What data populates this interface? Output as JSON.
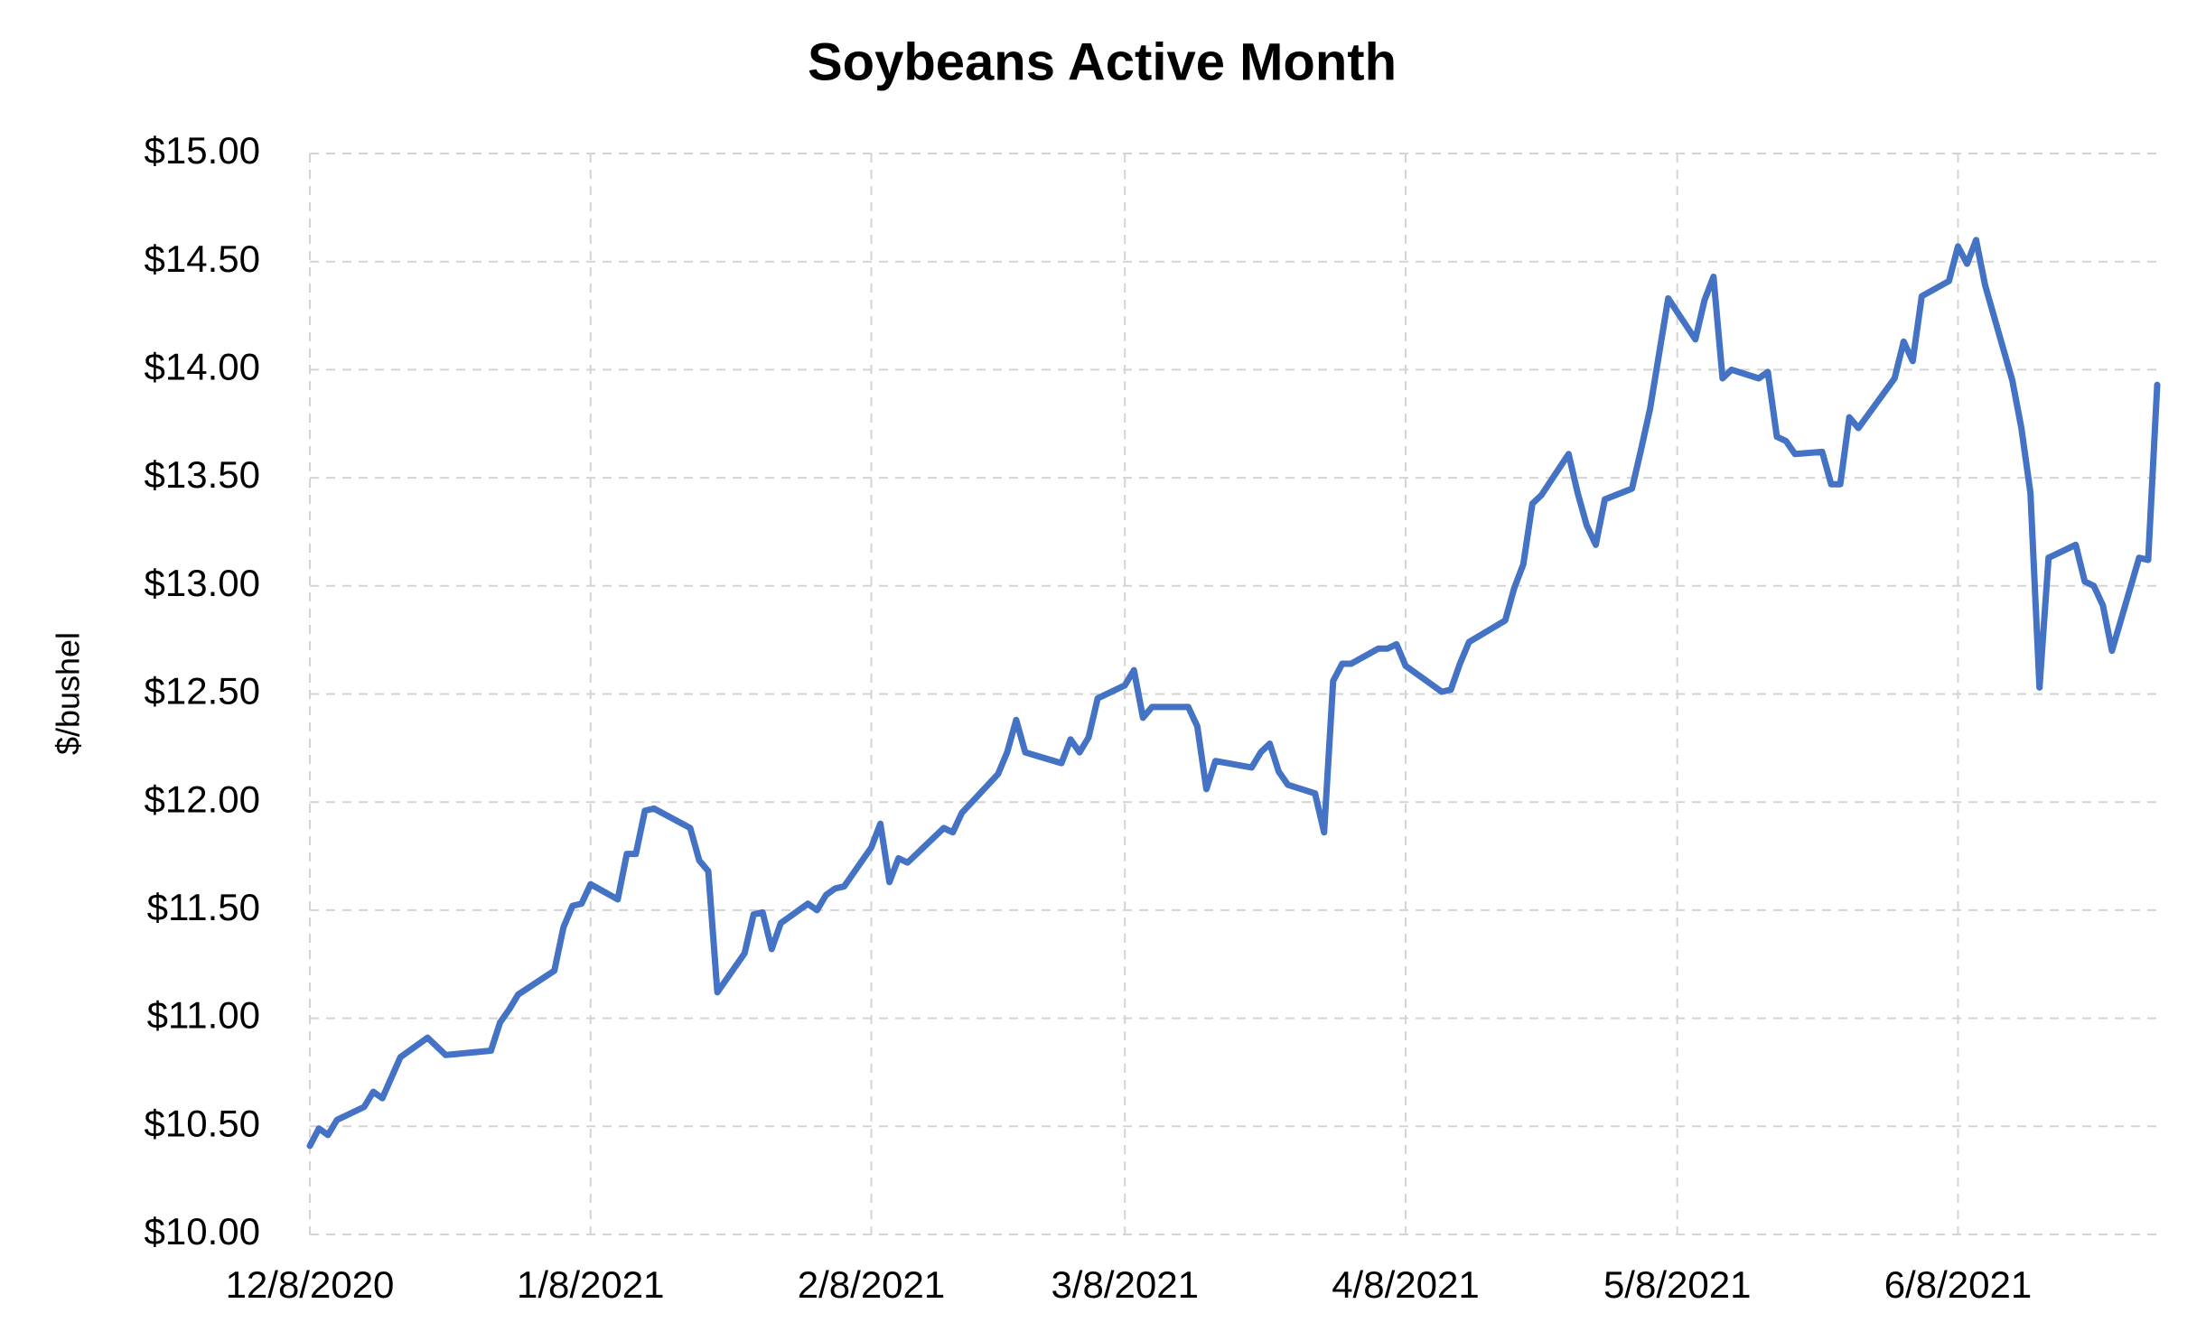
{
  "chart_data": {
    "type": "line",
    "title": "Soybeans Active Month",
    "ylabel": "$/bushel",
    "x": [
      "12/8/2020",
      "12/9/2020",
      "12/10/2020",
      "12/11/2020",
      "12/14/2020",
      "12/15/2020",
      "12/16/2020",
      "12/18/2020",
      "12/21/2020",
      "12/23/2020",
      "12/28/2020",
      "12/29/2020",
      "12/30/2020",
      "12/31/2020",
      "1/4/2021",
      "1/5/2021",
      "1/6/2021",
      "1/7/2021",
      "1/8/2021",
      "1/11/2021",
      "1/12/2021",
      "1/13/2021",
      "1/14/2021",
      "1/15/2021",
      "1/19/2021",
      "1/20/2021",
      "1/21/2021",
      "1/22/2021",
      "1/25/2021",
      "1/26/2021",
      "1/27/2021",
      "1/28/2021",
      "1/29/2021",
      "2/1/2021",
      "2/2/2021",
      "2/3/2021",
      "2/4/2021",
      "2/5/2021",
      "2/8/2021",
      "2/9/2021",
      "2/10/2021",
      "2/11/2021",
      "2/12/2021",
      "2/16/2021",
      "2/17/2021",
      "2/18/2021",
      "2/22/2021",
      "2/23/2021",
      "2/24/2021",
      "2/25/2021",
      "3/1/2021",
      "3/2/2021",
      "3/3/2021",
      "3/4/2021",
      "3/5/2021",
      "3/8/2021",
      "3/9/2021",
      "3/10/2021",
      "3/11/2021",
      "3/15/2021",
      "3/16/2021",
      "3/17/2021",
      "3/18/2021",
      "3/22/2021",
      "3/23/2021",
      "3/24/2021",
      "3/25/2021",
      "3/26/2021",
      "3/29/2021",
      "3/30/2021",
      "3/31/2021",
      "4/1/2021",
      "4/2/2021",
      "4/5/2021",
      "4/6/2021",
      "4/7/2021",
      "4/8/2021",
      "4/12/2021",
      "4/13/2021",
      "4/14/2021",
      "4/15/2021",
      "4/19/2021",
      "4/20/2021",
      "4/21/2021",
      "4/22/2021",
      "4/23/2021",
      "4/26/2021",
      "4/27/2021",
      "4/28/2021",
      "4/29/2021",
      "4/30/2021",
      "5/3/2021",
      "5/4/2021",
      "5/5/2021",
      "5/7/2021",
      "5/10/2021",
      "5/11/2021",
      "5/12/2021",
      "5/13/2021",
      "5/14/2021",
      "5/17/2021",
      "5/18/2021",
      "5/19/2021",
      "5/20/2021",
      "5/21/2021",
      "5/24/2021",
      "5/25/2021",
      "5/26/2021",
      "5/27/2021",
      "5/28/2021",
      "6/1/2021",
      "6/2/2021",
      "6/3/2021",
      "6/4/2021",
      "6/7/2021",
      "6/8/2021",
      "6/9/2021",
      "6/10/2021",
      "6/11/2021",
      "6/14/2021",
      "6/15/2021",
      "6/16/2021",
      "6/17/2021",
      "6/18/2021",
      "6/21/2021",
      "6/22/2021",
      "6/23/2021",
      "6/24/2021",
      "6/25/2021",
      "6/28/2021",
      "6/29/2021",
      "6/30/2021"
    ],
    "series": [
      {
        "name": "Soybeans Active Month",
        "color": "#4472c4",
        "values": [
          10.41,
          10.49,
          10.46,
          10.53,
          10.59,
          10.66,
          10.63,
          10.82,
          10.91,
          10.83,
          10.85,
          10.98,
          11.04,
          11.11,
          11.22,
          11.42,
          11.52,
          11.53,
          11.62,
          11.55,
          11.76,
          11.76,
          11.96,
          11.97,
          11.88,
          11.73,
          11.68,
          11.12,
          11.3,
          11.48,
          11.49,
          11.32,
          11.44,
          11.53,
          11.5,
          11.57,
          11.6,
          11.61,
          11.79,
          11.9,
          11.63,
          11.74,
          11.72,
          11.88,
          11.86,
          11.95,
          12.13,
          12.23,
          12.38,
          12.23,
          12.18,
          12.29,
          12.23,
          12.3,
          12.48,
          12.54,
          12.61,
          12.39,
          12.44,
          12.44,
          12.35,
          12.06,
          12.19,
          12.16,
          12.23,
          12.27,
          12.14,
          12.08,
          12.04,
          11.86,
          12.56,
          12.64,
          12.64,
          12.71,
          12.71,
          12.73,
          12.63,
          12.51,
          12.52,
          12.64,
          12.74,
          12.84,
          12.99,
          13.1,
          13.38,
          13.42,
          13.61,
          13.43,
          13.28,
          13.19,
          13.4,
          13.45,
          13.63,
          13.82,
          14.33,
          14.14,
          14.32,
          14.43,
          13.96,
          14.0,
          13.96,
          13.99,
          13.69,
          13.67,
          13.61,
          13.62,
          13.47,
          13.47,
          13.78,
          13.73,
          13.96,
          14.13,
          14.04,
          14.34,
          14.41,
          14.57,
          14.49,
          14.6,
          14.39,
          13.95,
          13.73,
          13.43,
          12.53,
          13.13,
          13.19,
          13.02,
          13.0,
          12.91,
          12.7,
          13.13,
          13.12,
          13.93
        ]
      }
    ],
    "xlim": [
      "12/8/2020",
      "6/30/2021"
    ],
    "xticks": [
      "12/8/2020",
      "1/8/2021",
      "2/8/2021",
      "3/8/2021",
      "4/8/2021",
      "5/8/2021",
      "6/8/2021"
    ],
    "ylim": [
      10,
      15
    ],
    "yticks": [
      {
        "value": 10,
        "label": "$10.00"
      },
      {
        "value": 10.5,
        "label": "$10.50"
      },
      {
        "value": 11,
        "label": "$11.00"
      },
      {
        "value": 11.5,
        "label": "$11.50"
      },
      {
        "value": 12,
        "label": "$12.00"
      },
      {
        "value": 12.5,
        "label": "$12.50"
      },
      {
        "value": 13,
        "label": "$13.00"
      },
      {
        "value": 13.5,
        "label": "$13.50"
      },
      {
        "value": 14,
        "label": "$14.00"
      },
      {
        "value": 14.5,
        "label": "$14.50"
      },
      {
        "value": 15,
        "label": "$15.00"
      }
    ],
    "grid": true
  }
}
